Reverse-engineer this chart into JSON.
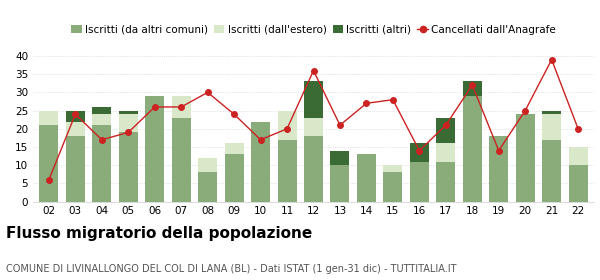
{
  "years": [
    "02",
    "03",
    "04",
    "05",
    "06",
    "07",
    "08",
    "09",
    "10",
    "11",
    "12",
    "13",
    "14",
    "15",
    "16",
    "17",
    "18",
    "19",
    "20",
    "21",
    "22"
  ],
  "iscritti_altri_comuni": [
    21,
    18,
    21,
    19,
    29,
    23,
    8,
    13,
    22,
    17,
    18,
    10,
    13,
    8,
    11,
    11,
    29,
    18,
    24,
    17,
    10
  ],
  "iscritti_estero": [
    4,
    4,
    3,
    5,
    0,
    6,
    4,
    3,
    0,
    8,
    5,
    0,
    0,
    2,
    0,
    5,
    0,
    0,
    0,
    7,
    5
  ],
  "iscritti_altri": [
    0,
    3,
    2,
    1,
    0,
    0,
    0,
    0,
    0,
    0,
    10,
    4,
    0,
    0,
    5,
    7,
    4,
    0,
    0,
    1,
    0
  ],
  "cancellati": [
    6,
    24,
    17,
    19,
    26,
    26,
    30,
    24,
    17,
    20,
    36,
    21,
    27,
    28,
    14,
    21,
    32,
    14,
    25,
    39,
    20
  ],
  "color_altri_comuni": "#8aab7a",
  "color_estero": "#d9e8c8",
  "color_altri": "#3a6b35",
  "color_cancellati": "#cc2222",
  "title": "Flusso migratorio della popolazione",
  "subtitle": "COMUNE DI LIVINALLONGO DEL COL DI LANA (BL) - Dati ISTAT (1 gen-31 dic) - TUTTITALIA.IT",
  "ylim": [
    0,
    40
  ],
  "yticks": [
    0,
    5,
    10,
    15,
    20,
    25,
    30,
    35,
    40
  ],
  "legend_labels": [
    "Iscritti (da altri comuni)",
    "Iscritti (dall'estero)",
    "Iscritti (altri)",
    "Cancellati dall'Anagrafe"
  ],
  "title_fontsize": 11,
  "subtitle_fontsize": 7,
  "tick_fontsize": 7.5,
  "legend_fontsize": 7.5,
  "bar_width": 0.72
}
